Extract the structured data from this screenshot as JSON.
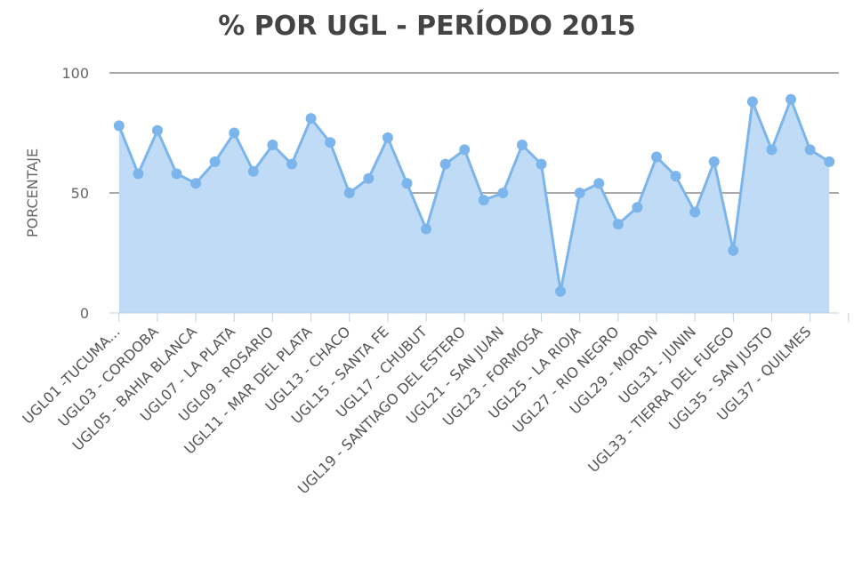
{
  "chart_data": {
    "type": "area",
    "title": "% POR UGL - PERÍODO 2015",
    "xlabel": "",
    "ylabel": "PORCENTAJE",
    "ylim": [
      0,
      100
    ],
    "yticks": [
      0,
      50,
      100
    ],
    "grid": true,
    "legend": "none",
    "colors": {
      "line": "#7cb5ec",
      "fill": "#c0dbf6",
      "grid": "#555555",
      "axis": "#c0d0e0"
    },
    "categories": [
      "UGL01 -TUCUMA...",
      "",
      "UGL03 - CORDOBA",
      "",
      "UGL05 - BAHIA BLANCA",
      "",
      "UGL07 - LA PLATA",
      "",
      "UGL09 - ROSARIO",
      "",
      "UGL11 - MAR DEL PLATA",
      "",
      "UGL13 - CHACO",
      "",
      "UGL15 - SANTA FE",
      "",
      "UGL17 - CHUBUT",
      "",
      "UGL19 - SANTIAGO DEL ESTERO",
      "",
      "UGL21 - SAN JUAN",
      "",
      "UGL23 - FORMOSA",
      "",
      "UGL25 - LA RIOJA",
      "",
      "UGL27 - RIO NEGRO",
      "",
      "UGL29 - MORON",
      "",
      "UGL31 - JUNIN",
      "",
      "UGL33 - TIERRA DEL FUEGO",
      "",
      "UGL35 - SAN JUSTO",
      "",
      "UGL37 - QUILMES",
      ""
    ],
    "values": [
      78,
      58,
      76,
      58,
      54,
      63,
      75,
      59,
      70,
      62,
      81,
      71,
      50,
      56,
      73,
      54,
      35,
      62,
      68,
      47,
      50,
      70,
      62,
      9,
      50,
      54,
      37,
      44,
      65,
      57,
      42,
      63,
      26,
      88,
      68,
      89,
      68,
      63
    ]
  }
}
